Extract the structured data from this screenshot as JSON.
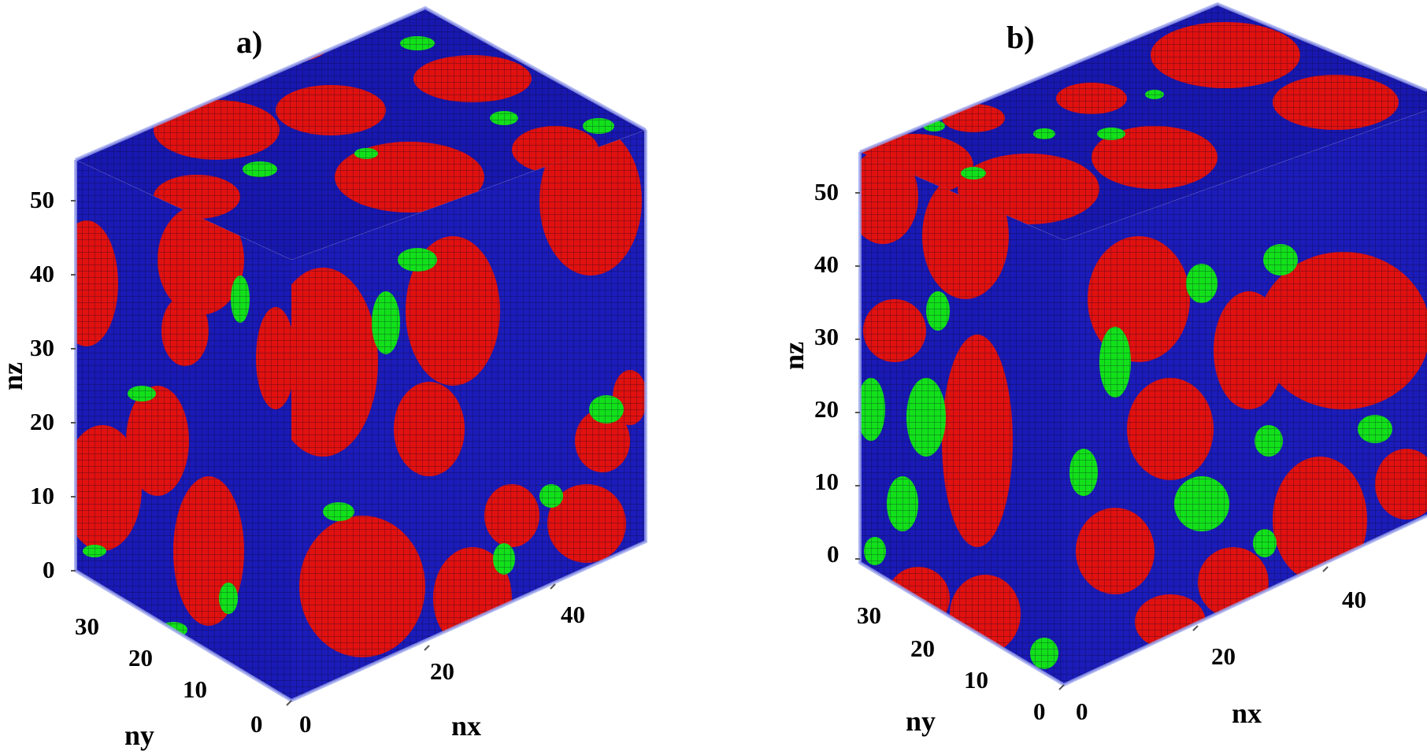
{
  "figure": {
    "panels": [
      {
        "id": "a",
        "label": "a)",
        "axes": {
          "x_label": "nx",
          "y_label": "ny",
          "z_label": "nz",
          "x_ticks": [
            "0",
            "20",
            "40"
          ],
          "y_ticks": [
            "0",
            "10",
            "20",
            "30"
          ],
          "z_ticks": [
            "0",
            "10",
            "20",
            "30",
            "40",
            "50"
          ]
        }
      },
      {
        "id": "b",
        "label": "b)",
        "axes": {
          "x_label": "nx",
          "y_label": "ny",
          "z_label": "nz",
          "x_ticks": [
            "0",
            "20",
            "40"
          ],
          "y_ticks": [
            "0",
            "10",
            "20",
            "30"
          ],
          "z_ticks": [
            "0",
            "10",
            "20",
            "30",
            "40",
            "50"
          ]
        }
      }
    ],
    "colors": {
      "matrix_phase": "#1a1ab4",
      "particle_phase": "#e0110f",
      "interface_phase": "#12e01a",
      "grid_line": "#0a0a0a",
      "edge_glow": "#9aa2ee"
    }
  }
}
